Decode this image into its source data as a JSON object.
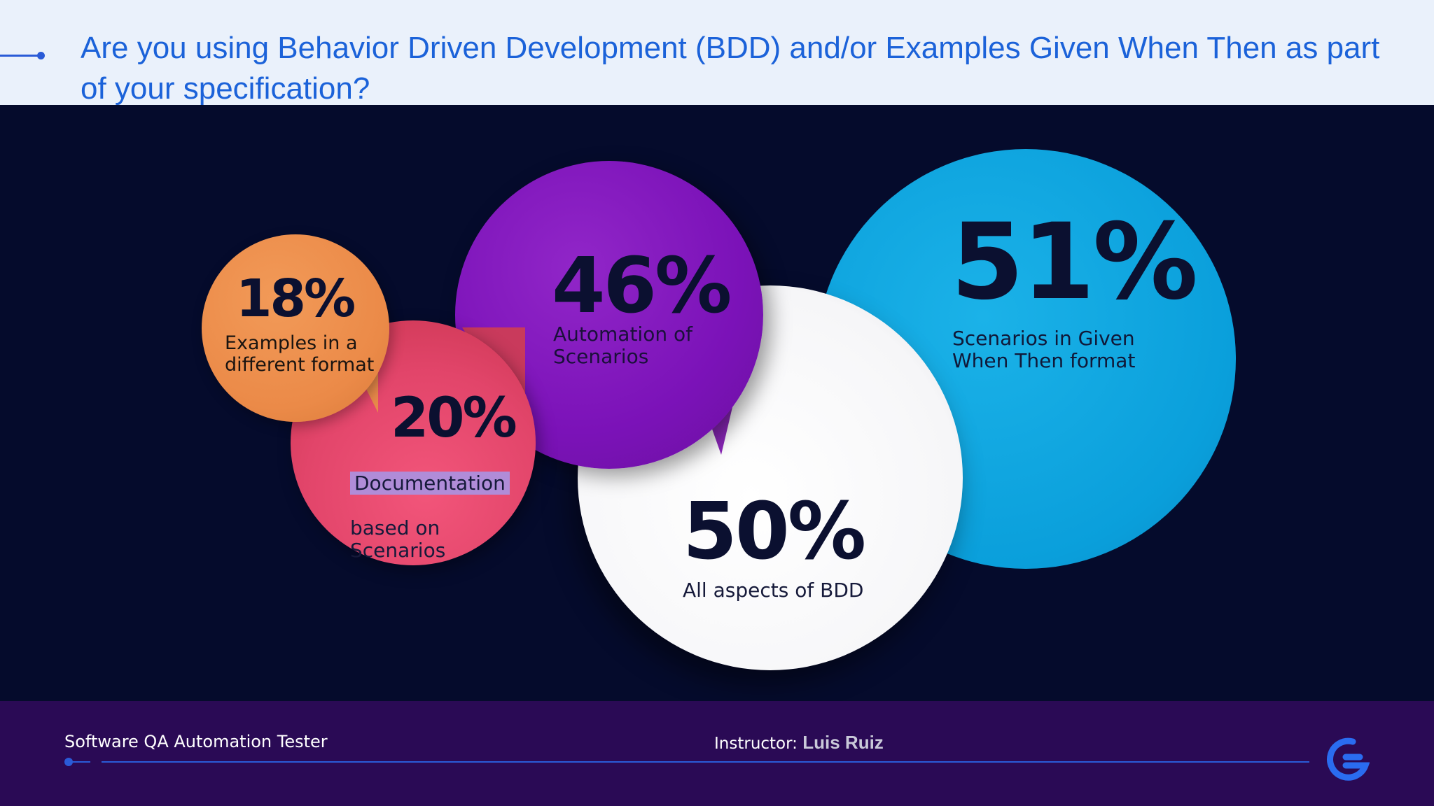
{
  "header": {
    "question": "Are you using Behavior Driven Development (BDD) and/or Examples Given When Then as part of your specification?"
  },
  "stats": {
    "examples": {
      "percent": "18%",
      "label": "Examples in a\ndifferent format",
      "color": "#ec8a4a"
    },
    "documentation": {
      "percent": "20%",
      "label_highlight": "Documentation",
      "label_rest": "based on\nScenarios",
      "color": "#e8466c"
    },
    "automation": {
      "percent": "46%",
      "label": "Automation of\nScenarios",
      "color": "#8a1ec4"
    },
    "all_aspects": {
      "percent": "50%",
      "label": "All aspects of BDD",
      "color": "#ffffff"
    },
    "given_when_then": {
      "percent": "51%",
      "label": "Scenarios in Given\nWhen Then format",
      "color": "#0aa6e0"
    }
  },
  "footer": {
    "course": "Software QA Automation Tester",
    "instructor_prefix": "Instructor: ",
    "instructor_name": "Luis Ruiz",
    "logo": "brand-logo-icon"
  }
}
